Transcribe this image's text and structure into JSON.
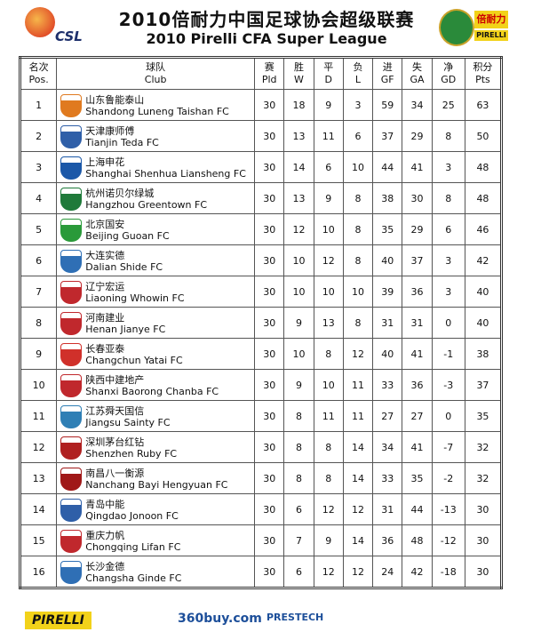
{
  "header": {
    "logo": "CSL",
    "title_cn": "2010倍耐力中国足球协会超级联赛",
    "title_en": "2010 Pirelli CFA Super League",
    "sponsor_cn": "倍耐力",
    "sponsor_en": "PIRELLI"
  },
  "table": {
    "columns": [
      [
        "名次",
        "Pos."
      ],
      [
        "球队",
        "Club"
      ],
      [
        "赛",
        "Pld"
      ],
      [
        "胜",
        "W"
      ],
      [
        "平",
        "D"
      ],
      [
        "负",
        "L"
      ],
      [
        "进",
        "GF"
      ],
      [
        "失",
        "GA"
      ],
      [
        "净",
        "GD"
      ],
      [
        "积分",
        "Pts"
      ]
    ],
    "rows": [
      [
        1,
        "山东鲁能泰山",
        "Shandong Luneng Taishan FC",
        30,
        18,
        9,
        3,
        59,
        34,
        25,
        63
      ],
      [
        2,
        "天津康师傅",
        "Tianjin Teda FC",
        30,
        13,
        11,
        6,
        37,
        29,
        8,
        50
      ],
      [
        3,
        "上海申花",
        "Shanghai Shenhua Liansheng FC",
        30,
        14,
        6,
        10,
        44,
        41,
        3,
        48
      ],
      [
        4,
        "杭州诺贝尔绿城",
        "Hangzhou Greentown FC",
        30,
        13,
        9,
        8,
        38,
        30,
        8,
        48
      ],
      [
        5,
        "北京国安",
        "Beijing Guoan FC",
        30,
        12,
        10,
        8,
        35,
        29,
        6,
        46
      ],
      [
        6,
        "大连实德",
        "Dalian Shide FC",
        30,
        10,
        12,
        8,
        40,
        37,
        3,
        42
      ],
      [
        7,
        "辽宁宏运",
        "Liaoning Whowin FC",
        30,
        10,
        10,
        10,
        39,
        36,
        3,
        40
      ],
      [
        8,
        "河南建业",
        "Henan Jianye FC",
        30,
        9,
        13,
        8,
        31,
        31,
        0,
        40
      ],
      [
        9,
        "长春亚泰",
        "Changchun Yatai FC",
        30,
        10,
        8,
        12,
        40,
        41,
        -1,
        38
      ],
      [
        10,
        "陕西中建地产",
        "Shanxi Baorong Chanba FC",
        30,
        9,
        10,
        11,
        33,
        36,
        -3,
        37
      ],
      [
        11,
        "江苏舜天国信",
        "Jiangsu Sainty FC",
        30,
        8,
        11,
        11,
        27,
        27,
        0,
        35
      ],
      [
        12,
        "深圳茅台红钻",
        "Shenzhen Ruby FC",
        30,
        8,
        8,
        14,
        34,
        41,
        -7,
        32
      ],
      [
        13,
        "南昌八一衡源",
        "Nanchang Bayi Hengyuan FC",
        30,
        8,
        8,
        14,
        33,
        35,
        -2,
        32
      ],
      [
        14,
        "青岛中能",
        "Qingdao Jonoon FC",
        30,
        6,
        12,
        12,
        31,
        44,
        -13,
        30
      ],
      [
        15,
        "重庆力帆",
        "Chongqing Lifan FC",
        30,
        7,
        9,
        14,
        36,
        48,
        -12,
        30
      ],
      [
        16,
        "长沙金德",
        "Changsha Ginde FC",
        30,
        6,
        12,
        12,
        24,
        42,
        -18,
        30
      ]
    ]
  },
  "footer": {
    "sponsors": [
      "PIRELLI",
      "360buy.com",
      "PRESTECH"
    ]
  }
}
